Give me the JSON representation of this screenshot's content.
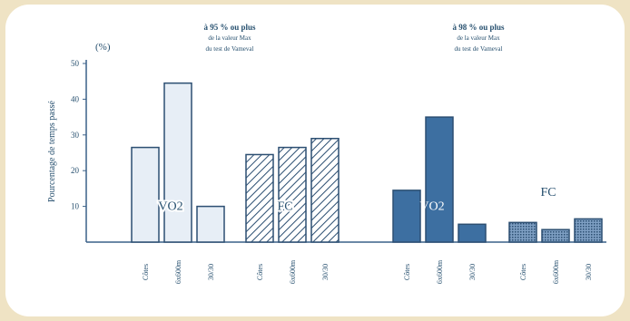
{
  "colors": {
    "page_bg": "#efe3c4",
    "axis": "#3a6188",
    "text": "#27506f",
    "vo2_left_fill": "#e7eef6",
    "vo2_right_fill": "#3d6fa1",
    "bar_stroke": "#2c4f72",
    "hatch": "#2c4f72"
  },
  "chart_data": {
    "type": "bar",
    "ylabel": "Pourcentage de temps passé",
    "yunit": "(%)",
    "ylim": [
      0,
      50
    ],
    "yticks": [
      "10",
      "20",
      "30",
      "40",
      "50"
    ],
    "grid": false,
    "panels": [
      {
        "title_lines": [
          "à 95 % ou plus",
          "de la valeur Max",
          "du test de Vameval"
        ],
        "groups": [
          {
            "label": "VO2",
            "style": "light",
            "categories": [
              "Côtes",
              "6x600m",
              "30/30"
            ],
            "values": [
              26.5,
              44.5,
              10
            ]
          },
          {
            "label": "FC",
            "style": "hatched",
            "categories": [
              "Côtes",
              "6x600m",
              "30/30"
            ],
            "values": [
              24.5,
              26.5,
              29
            ]
          }
        ]
      },
      {
        "title_lines": [
          "à 98 % ou plus",
          "de la valeur Max",
          "du test de Vameval"
        ],
        "groups": [
          {
            "label": "VO2",
            "style": "solid",
            "categories": [
              "Côtes",
              "6x600m",
              "30/30"
            ],
            "values": [
              14.5,
              35,
              5
            ]
          },
          {
            "label": "FC",
            "style": "dotted",
            "categories": [
              "Côtes",
              "6x600m",
              "30/30"
            ],
            "values": [
              5.5,
              3.5,
              6.5
            ]
          }
        ]
      }
    ]
  }
}
